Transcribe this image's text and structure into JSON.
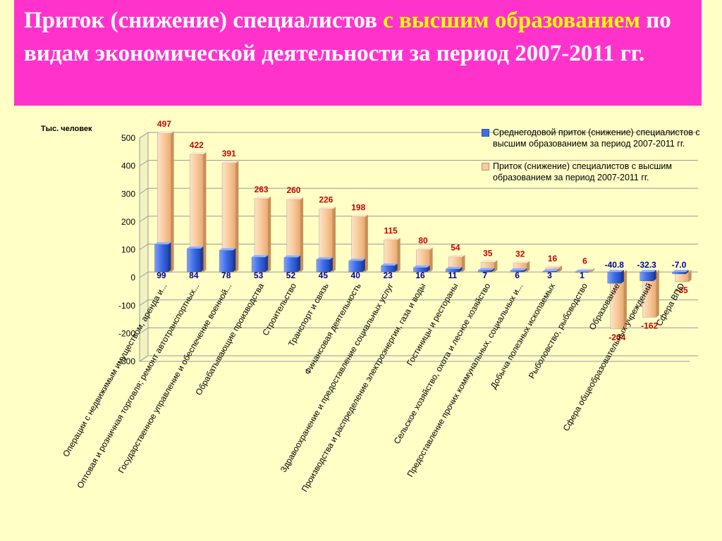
{
  "title": {
    "part1": "Приток (снижение) специалистов ",
    "part2": "с высшим образованием",
    "part3": " по видам экономической деятельности за период 2007-2011 гг."
  },
  "colors": {
    "title_bg": "#ff33cc",
    "title_text": "#ffffff",
    "title_highlight": "#ffff00",
    "background": "#ffffc6",
    "bar_total": "#f9c99a",
    "bar_annual": "#3f6ee8",
    "label_total": "#cc0000",
    "label_annual": "#000099"
  },
  "chart_data": {
    "type": "bar",
    "ylabel": "Тыс. человек",
    "ylim": [
      -300,
      500
    ],
    "yticks": [
      "500",
      "400",
      "300",
      "200",
      "100",
      "0",
      "-100",
      "-200",
      "-300"
    ],
    "legend_position": "top-right",
    "categories": [
      "Операции с недвижимым имуществом, аренда и...",
      "Оптовая и розничная торговля; ремонт автотранспортных...",
      "Государственное управление и обеспечение военной...",
      "Обрабатывающие производства",
      "Строительство",
      "Транспорт и связь",
      "Финансовая деятельность",
      "Здравоохранение и предоставление социальных услуг",
      "Производства и распределение электроэнергии, газа и воды",
      "Гостиницы и рестораны",
      "Сельское хозяйство, охота и лесное хозяйство",
      "Предоставление прочих коммунальных, социальных и...",
      "Добыча полезных ископаемых",
      "Рыболовство, рыбоводство",
      "Образование",
      "Сфера общеобразовательных учреждений",
      "Сфера ВПО"
    ],
    "series": [
      {
        "name": "Среднегодовой приток (снижение) специалистов с высшим образованием за период 2007-2011 гг.",
        "values": [
          99,
          84,
          78,
          53,
          52,
          45,
          40,
          23,
          16,
          11,
          7,
          6,
          3,
          1,
          -40.8,
          -32.3,
          -7.0
        ],
        "labels": [
          "99",
          "84",
          "78",
          "53",
          "52",
          "45",
          "40",
          "23",
          "16",
          "11",
          "7",
          "6",
          "3",
          "1",
          "-40.8",
          "-32.3",
          "-7.0"
        ]
      },
      {
        "name": "Приток (снижение) специалистов с высшим образованием за период 2007-2011 гг.",
        "values": [
          497,
          422,
          391,
          263,
          260,
          226,
          198,
          115,
          80,
          54,
          35,
          32,
          16,
          6,
          -204,
          -162,
          -35
        ],
        "labels": [
          "497",
          "422",
          "391",
          "263",
          "260",
          "226",
          "198",
          "115",
          "80",
          "54",
          "35",
          "32",
          "16",
          "6",
          "-204",
          "-162",
          "-35"
        ]
      }
    ]
  }
}
